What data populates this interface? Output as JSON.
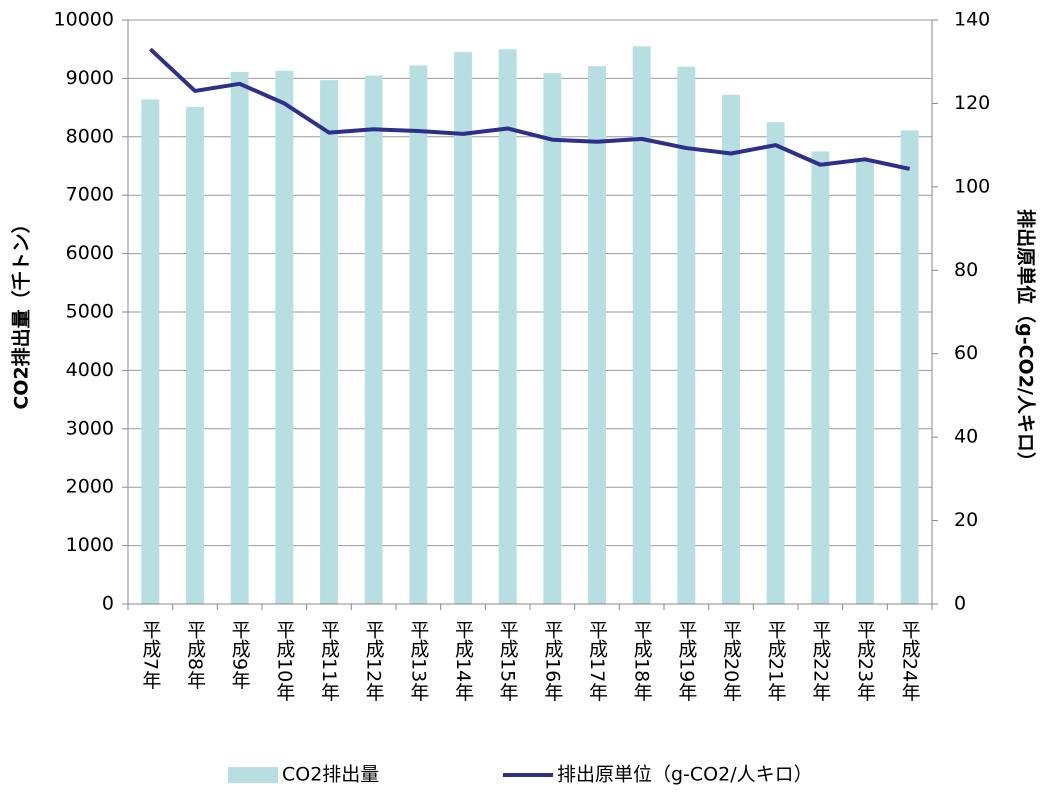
{
  "chart_data": {
    "type": "bar",
    "y_label": "CO2排出量（千トン）",
    "y2_label": "排出原単位（g-CO2/人キロ）",
    "categories": [
      "平成7年",
      "平成8年",
      "平成9年",
      "平成10年",
      "平成11年",
      "平成12年",
      "平成13年",
      "平成14年",
      "平成15年",
      "平成16年",
      "平成17年",
      "平成18年",
      "平成19年",
      "平成20年",
      "平成21年",
      "平成22年",
      "平成23年",
      "平成24年"
    ],
    "series": [
      {
        "name": "CO2排出量",
        "type": "bar",
        "color": "#b7dfe1",
        "values": [
          8640,
          8510,
          9110,
          9130,
          8970,
          9050,
          9220,
          9450,
          9500,
          9090,
          9210,
          9550,
          9200,
          8720,
          8250,
          7750,
          7620,
          8110
        ]
      },
      {
        "name": "排出原単位（g-CO2/人キロ）",
        "type": "line",
        "axis": "y2",
        "color": "#2e2e8c",
        "values": [
          133,
          123,
          124.7,
          120,
          113,
          113.8,
          113.4,
          112.7,
          114,
          111.3,
          110.8,
          111.5,
          109.3,
          108,
          110,
          105.3,
          106.6,
          104.3
        ]
      }
    ],
    "ylim": [
      0,
      10000
    ],
    "yticks": [
      0,
      1000,
      2000,
      3000,
      4000,
      5000,
      6000,
      7000,
      8000,
      9000,
      10000
    ],
    "y2lim": [
      0,
      140
    ],
    "y2ticks": [
      0,
      20,
      40,
      60,
      80,
      100,
      120,
      140
    ],
    "grid": true,
    "legend": "bottom"
  }
}
